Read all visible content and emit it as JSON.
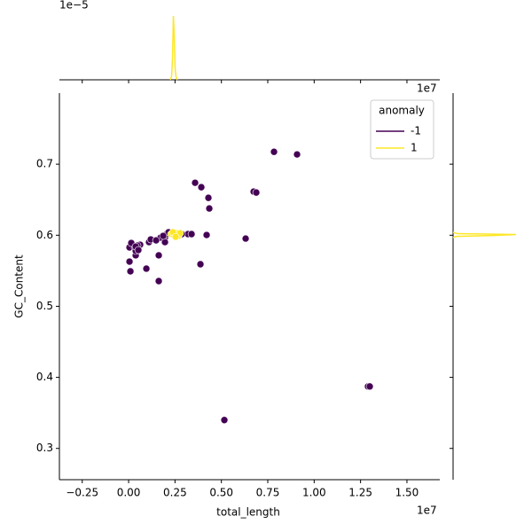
{
  "chart_data": {
    "type": "scatter",
    "x_label": "total_length",
    "y_label": "GC_Content",
    "x_offset_label": "1e7",
    "xlim": [
      -3730000,
      16770000
    ],
    "xticks": [
      {
        "value": -2500000,
        "label": "−0.25"
      },
      {
        "value": 0,
        "label": "0.00"
      },
      {
        "value": 2500000,
        "label": "0.25"
      },
      {
        "value": 5000000,
        "label": "0.50"
      },
      {
        "value": 7500000,
        "label": "0.75"
      },
      {
        "value": 10000000,
        "label": "1.00"
      },
      {
        "value": 12500000,
        "label": "1.25"
      },
      {
        "value": 15000000,
        "label": "1.50"
      }
    ],
    "ylim": [
      0.256,
      0.8
    ],
    "yticks": [
      0.3,
      0.4,
      0.5,
      0.6,
      0.7
    ],
    "legend": {
      "title": "anomaly",
      "loc": "upper right"
    },
    "series": [
      {
        "name": "-1",
        "color": "#440154",
        "x": [
          7836000,
          9078000,
          3583000,
          3918000,
          4300000,
          4348000,
          6737000,
          6880000,
          4204000,
          6307000,
          3870000,
          5160000,
          12900000,
          12996000,
          48000,
          48000,
          96000,
          1624000,
          956000,
          1624000,
          382000,
          334000,
          143000,
          621000,
          478000,
          1099000,
          382000,
          1194000,
          1959000,
          1720000,
          2054000,
          1959000,
          3201000,
          3392000,
          2867000,
          2150000,
          382000,
          525000,
          1481000,
          1863000
        ],
        "y": [
          0.7174,
          0.7137,
          0.6738,
          0.6676,
          0.6526,
          0.6377,
          0.6614,
          0.6601,
          0.6003,
          0.5953,
          0.5592,
          0.3399,
          0.3872,
          0.3872,
          0.5829,
          0.5629,
          0.5492,
          0.5355,
          0.553,
          0.5717,
          0.5717,
          0.5816,
          0.5891,
          0.5866,
          0.5854,
          0.5903,
          0.5779,
          0.5941,
          0.5966,
          0.5966,
          0.6016,
          0.5903,
          0.6016,
          0.6016,
          0.6016,
          0.6041,
          0.5841,
          0.5791,
          0.5928,
          0.5991
        ]
      },
      {
        "name": "1",
        "color": "#fde725",
        "x": [
          2293000,
          2437000,
          2580000,
          2676000,
          2771000,
          2389000,
          2532000
        ],
        "y": [
          0.6016,
          0.6003,
          0.6028,
          0.5991,
          0.6028,
          0.6041,
          0.5978
        ]
      }
    ],
    "marginal_x": {
      "offset_label": "1e−5",
      "ylim": [
        0,
        2e-05
      ],
      "x": [
        2246000,
        2317000,
        2365000,
        2413000,
        2461000,
        2508000,
        2556000,
        2628000
      ],
      "density": [
        0,
        1e-06,
        6e-06,
        1.8e-05,
        1.2e-05,
        3e-06,
        8e-07,
        0
      ],
      "color": "#fde725"
    },
    "marginal_y": {
      "offset_label": "1e7",
      "xlim": [
        0,
        50000000
      ],
      "y": [
        0.6041,
        0.6022,
        0.601,
        0.5997,
        0.5984,
        0.5966
      ],
      "density": [
        0,
        3000000,
        44400000,
        30000000,
        2000000,
        0
      ],
      "color": "#fde725"
    }
  }
}
